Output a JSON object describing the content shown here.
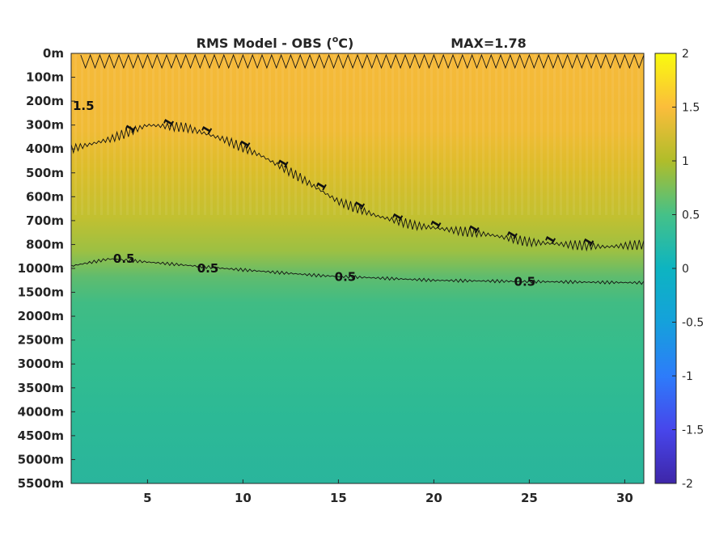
{
  "chart_data": {
    "type": "heatmap",
    "title": "RMS Model - OBS (",
    "title_unit_sup": "o",
    "title_unit_tail": "C)",
    "max_label": "MAX=1.78",
    "x_ticks": [
      "5",
      "10",
      "15",
      "20",
      "25",
      "30"
    ],
    "x_tick_values": [
      5,
      10,
      15,
      20,
      25,
      30
    ],
    "xlim": [
      1,
      31
    ],
    "y_ticks": [
      "0m",
      "100m",
      "200m",
      "300m",
      "400m",
      "500m",
      "600m",
      "700m",
      "800m",
      "1000m",
      "1500m",
      "2000m",
      "2500m",
      "3000m",
      "3500m",
      "4000m",
      "4500m",
      "5000m",
      "5500m"
    ],
    "colorbar": {
      "ticks": [
        "2",
        "1.5",
        "1",
        "0.5",
        "0",
        "-0.5",
        "-1",
        "-1.5",
        "-2"
      ],
      "tick_values": [
        2,
        1.5,
        1,
        0.5,
        0,
        -0.5,
        -1,
        -1.5,
        -2
      ],
      "range": [
        -2,
        2
      ],
      "colormap": "parula"
    },
    "contour_levels": [
      0.5,
      1,
      1.5
    ],
    "contour_label_1_5": "1.5",
    "contour_label_1": "1",
    "contour_label_0_5": "0.5",
    "contour_1_depth_index": [
      [
        1,
        4.0
      ],
      [
        3,
        3.6
      ],
      [
        5,
        3.0
      ],
      [
        7,
        3.1
      ],
      [
        9,
        3.6
      ],
      [
        11,
        4.3
      ],
      [
        13,
        5.2
      ],
      [
        15,
        6.2
      ],
      [
        17,
        6.8
      ],
      [
        19,
        7.2
      ],
      [
        21,
        7.4
      ],
      [
        23,
        7.6
      ],
      [
        25,
        7.9
      ],
      [
        27,
        8.0
      ],
      [
        29,
        8.1
      ],
      [
        31,
        8.0
      ]
    ],
    "contour_0_5_depth_index": [
      [
        1,
        8.9
      ],
      [
        3,
        8.6
      ],
      [
        6,
        8.8
      ],
      [
        9,
        9.0
      ],
      [
        14,
        9.3
      ],
      [
        20,
        9.5
      ],
      [
        25,
        9.55
      ],
      [
        31,
        9.6
      ]
    ]
  }
}
